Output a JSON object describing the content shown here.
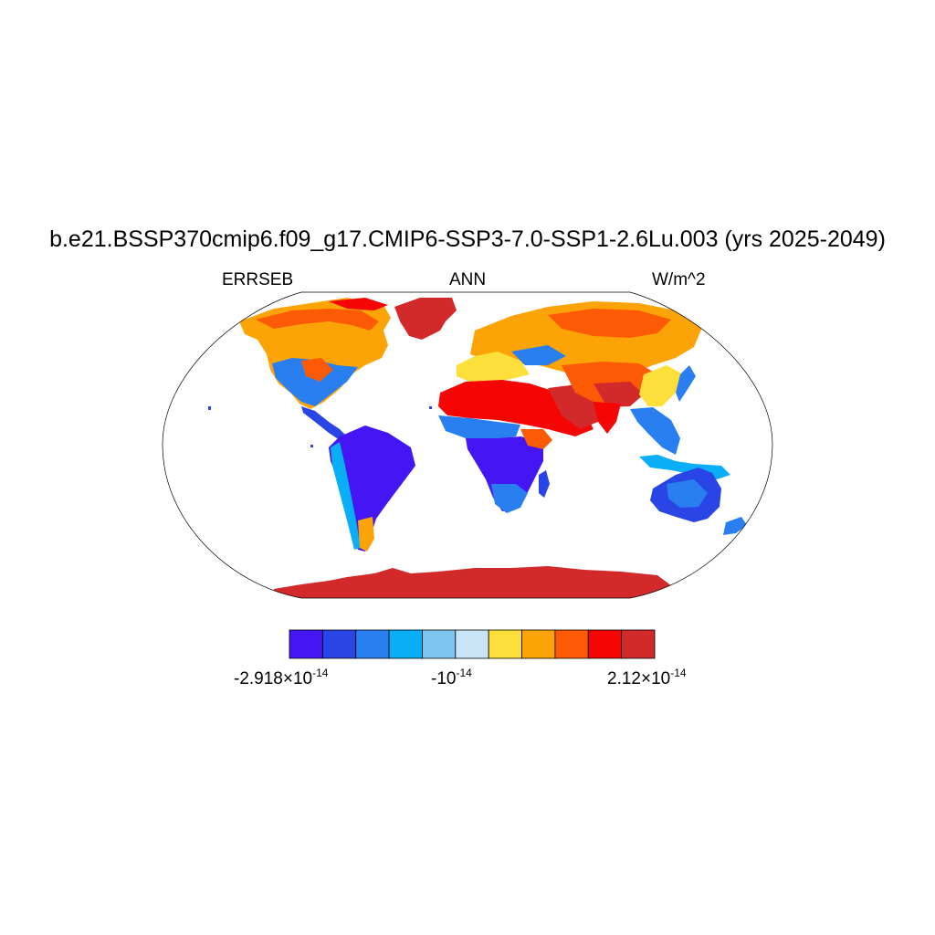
{
  "title": "b.e21.BSSP370cmip6.f09_g17.CMIP6-SSP3-7.0-SSP1-2.6Lu.003 (yrs 2025-2049)",
  "subtitle_left": "ERRSEB",
  "subtitle_center": "ANN",
  "subtitle_right": "W/m^2",
  "projection": "robinson",
  "colorbar": {
    "colors": [
      "#4516f4",
      "#2a45e6",
      "#2a7ff0",
      "#0aaef7",
      "#7ec6f0",
      "#c8e4f6",
      "#fddf3b",
      "#fba307",
      "#fc5a05",
      "#f60505",
      "#d22a2a"
    ],
    "labels": [
      {
        "mantissa": "-2.918×10",
        "exponent": "-14"
      },
      {
        "mantissa": "-10",
        "exponent": "-14"
      },
      {
        "mantissa": "2.12×10",
        "exponent": "-14"
      }
    ]
  },
  "regions": [
    {
      "name": "Greenland",
      "category": 10
    },
    {
      "name": "Antarctica",
      "category": 10
    },
    {
      "name": "Sahara and Arabia",
      "category": 9
    },
    {
      "name": "Canada",
      "category": 7
    },
    {
      "name": "Northern Eurasia",
      "category": 7
    },
    {
      "name": "Central Asia",
      "category": 8
    },
    {
      "name": "United States",
      "category": 4
    },
    {
      "name": "Amazon",
      "category": 0
    },
    {
      "name": "Central Africa",
      "category": 0
    },
    {
      "name": "Australia",
      "category": 1
    },
    {
      "name": "Southeast Asia",
      "category": 2
    }
  ]
}
